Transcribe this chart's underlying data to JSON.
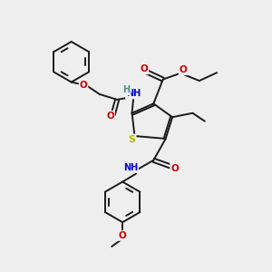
{
  "bg_color": "#eeeeee",
  "bond_color": "#1a1a1a",
  "atom_colors": {
    "O": "#cc0000",
    "N": "#0000cc",
    "S": "#b8b800",
    "H": "#4a9090",
    "C": "#1a1a1a"
  },
  "figsize": [
    3.0,
    3.0
  ],
  "dpi": 100
}
